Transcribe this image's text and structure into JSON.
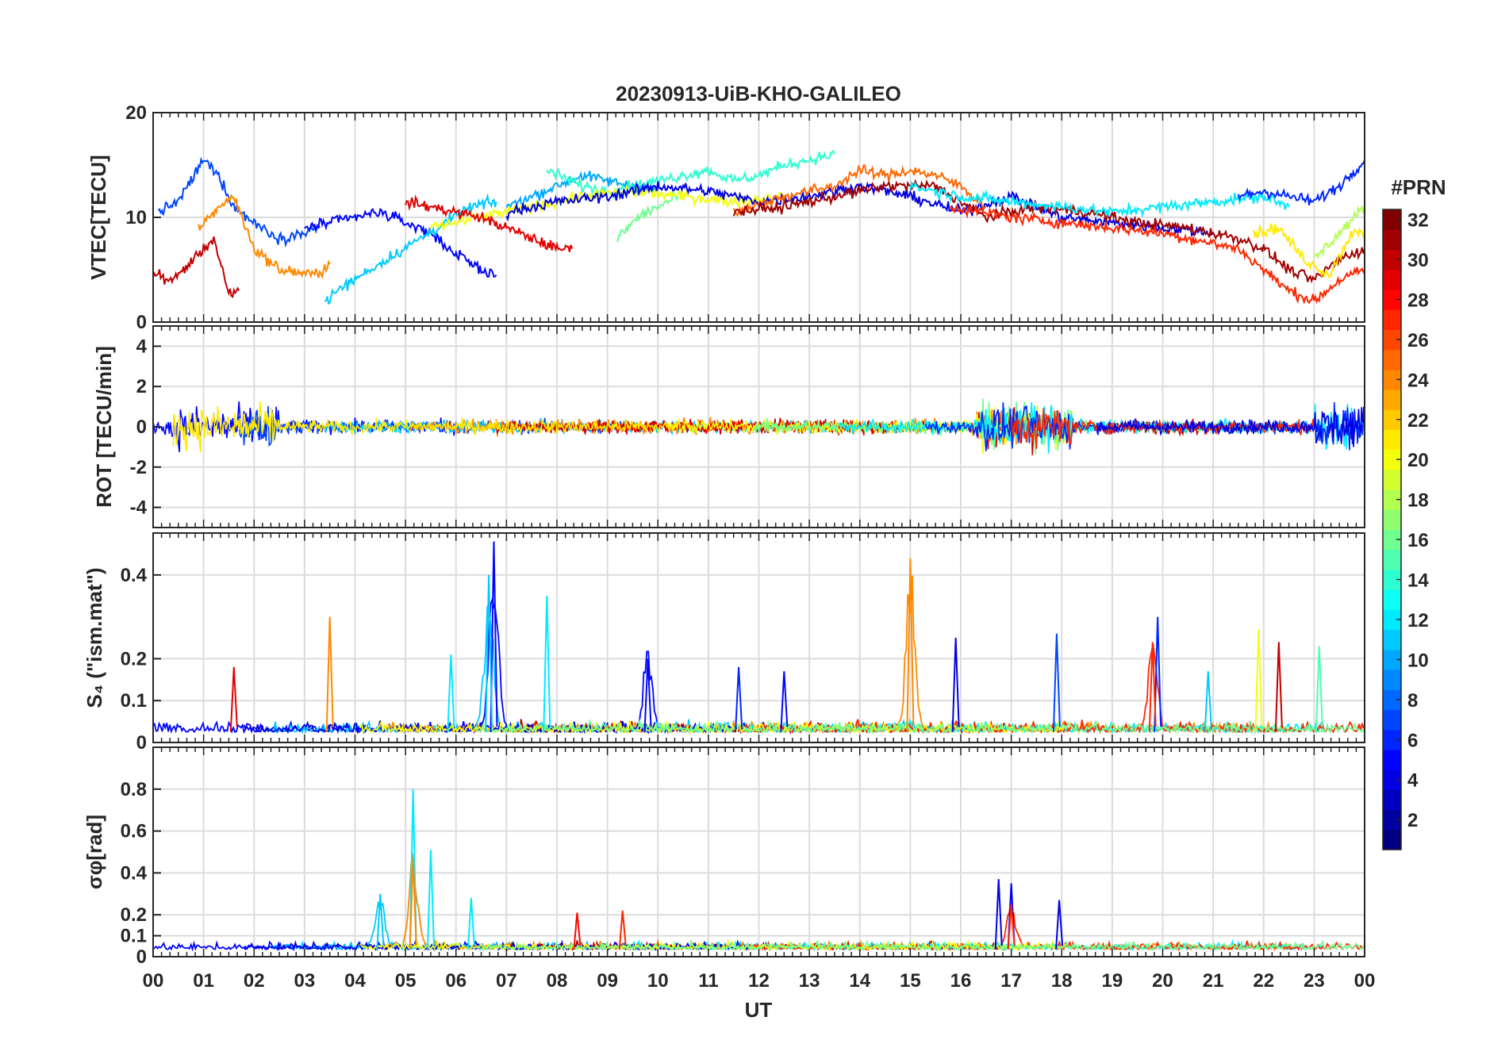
{
  "chart_data": {
    "type": "line",
    "title": "20230913-UiB-KHO-GALILEO",
    "xlabel": "UT",
    "x_ticks": [
      "00",
      "01",
      "02",
      "03",
      "04",
      "05",
      "06",
      "07",
      "08",
      "09",
      "10",
      "11",
      "12",
      "13",
      "14",
      "15",
      "16",
      "17",
      "18",
      "19",
      "20",
      "21",
      "22",
      "23",
      "00"
    ],
    "xlim": [
      0,
      24
    ],
    "colorbar": {
      "label": "#PRN",
      "range": [
        1,
        32
      ],
      "colormap": "jet",
      "ticks": [
        2,
        4,
        6,
        8,
        10,
        12,
        14,
        16,
        18,
        20,
        22,
        24,
        26,
        28,
        30,
        32
      ]
    },
    "panels": [
      {
        "id": "vtec",
        "ylabel": "VTEC[TECU]",
        "ylim": [
          0,
          20
        ],
        "yticks": [
          0,
          10,
          20
        ],
        "series": [
          {
            "prn": 7,
            "x": [
              0.1,
              0.5,
              1.0,
              1.3,
              1.6,
              2.0,
              2.5,
              3.0,
              3.3
            ],
            "y": [
              10.5,
              11.5,
              15.5,
              14,
              11,
              9.5,
              8,
              8.5,
              9
            ]
          },
          {
            "prn": 5,
            "x": [
              3.0,
              3.5,
              4.0,
              4.5,
              5.0,
              5.5,
              6.0,
              6.5,
              6.8
            ],
            "y": [
              9,
              9.5,
              10,
              10.5,
              9.5,
              8.5,
              6.5,
              5,
              4.5
            ]
          },
          {
            "prn": 30,
            "x": [
              0.0,
              0.4,
              0.8,
              1.2,
              1.5,
              1.7
            ],
            "y": [
              4.5,
              4,
              6,
              8,
              2.5,
              3
            ]
          },
          {
            "prn": 24,
            "x": [
              0.9,
              1.3,
              1.6,
              2.0,
              2.5,
              3.2,
              3.5
            ],
            "y": [
              9,
              11,
              12,
              7,
              5,
              4.5,
              5.5
            ]
          },
          {
            "prn": 11,
            "x": [
              3.4,
              3.8,
              4.3,
              4.8,
              5.3,
              5.8,
              6.3,
              6.8
            ],
            "y": [
              2,
              3.5,
              5,
              6.5,
              8,
              9.5,
              11,
              11.5
            ]
          },
          {
            "prn": 10,
            "x": [
              7.0,
              7.5,
              8.0,
              8.5,
              9.0,
              9.5,
              10.0
            ],
            "y": [
              11,
              12,
              13,
              14,
              13.5,
              13,
              12.5
            ]
          },
          {
            "prn": 14,
            "x": [
              7.8,
              8.5,
              9.0,
              9.5,
              10.0,
              10.5,
              11.0,
              11.5,
              12.0,
              12.5,
              13.0,
              13.5
            ],
            "y": [
              14.5,
              13,
              12.5,
              13,
              13.5,
              14,
              14.5,
              13.5,
              14,
              15,
              15.5,
              16
            ]
          },
          {
            "prn": 16,
            "x": [
              9.2,
              9.6,
              10.0,
              10.4
            ],
            "y": [
              8,
              10,
              11,
              12
            ]
          },
          {
            "prn": 20,
            "x": [
              5.5,
              6.5,
              7.5,
              8.5,
              9.5,
              10.5,
              11.5,
              12.5
            ],
            "y": [
              9,
              10,
              11,
              12,
              12.5,
              12,
              11.5,
              12
            ]
          },
          {
            "prn": 29,
            "x": [
              5.0,
              5.5,
              6.0,
              6.5,
              7.0,
              7.5,
              8.0,
              8.3
            ],
            "y": [
              11.5,
              11,
              10.5,
              10,
              9,
              8,
              7,
              7
            ]
          },
          {
            "prn": 4,
            "x": [
              7.0,
              8.0,
              9.0,
              10.0,
              11.0,
              12.0,
              13.0,
              14.0,
              15.0,
              16.0,
              17.0,
              18.0,
              19.0,
              20.0,
              21.0
            ],
            "y": [
              10.5,
              11.5,
              12,
              13,
              12.5,
              11.5,
              12,
              13,
              12,
              10.5,
              12,
              10,
              9.5,
              9,
              8.5
            ]
          },
          {
            "prn": 25,
            "x": [
              11.5,
              12.5,
              13.5,
              14.0,
              14.5,
              15.0,
              15.5,
              16.0,
              16.5
            ],
            "y": [
              10.5,
              12,
              13,
              14.5,
              14,
              14.5,
              14,
              13,
              11
            ]
          },
          {
            "prn": 31,
            "x": [
              11.5,
              12.5,
              13.5,
              14.5,
              15.5,
              16.5,
              17.5,
              18.5,
              19.5,
              20.5,
              21.5,
              22.0,
              22.5,
              23.0,
              23.5,
              24.0
            ],
            "y": [
              10.5,
              11,
              12,
              13,
              13,
              10,
              11,
              10.5,
              9.5,
              9,
              8,
              7,
              5,
              4,
              6,
              7
            ]
          },
          {
            "prn": 12,
            "x": [
              15.0,
              16.0,
              17.0,
              18.0,
              19.0,
              20.0,
              21.0,
              22.0,
              22.5
            ],
            "y": [
              13,
              12,
              11.5,
              11,
              10.5,
              11,
              11.5,
              12,
              11
            ]
          },
          {
            "prn": 27,
            "x": [
              15.8,
              17.0,
              18.0,
              19.0,
              20.0,
              21.0,
              21.5,
              22.0,
              22.5,
              23.0,
              23.5,
              24.0
            ],
            "y": [
              11,
              10,
              9.5,
              9,
              8.5,
              7.5,
              7,
              5,
              3,
              2,
              4,
              5
            ]
          },
          {
            "prn": 6,
            "x": [
              21.5,
              22.0,
              22.5,
              23.0,
              23.5,
              24.0
            ],
            "y": [
              12,
              12.5,
              12,
              11.5,
              13,
              15.5
            ]
          },
          {
            "prn": 21,
            "x": [
              21.8,
              22.3,
              22.8,
              23.3,
              23.8,
              24.0
            ],
            "y": [
              8.5,
              9,
              6,
              4.5,
              9,
              8
            ]
          },
          {
            "prn": 18,
            "x": [
              23.0,
              23.4,
              23.8,
              24.0
            ],
            "y": [
              6,
              8,
              10,
              11
            ]
          }
        ]
      },
      {
        "id": "rot",
        "ylabel": "ROT [TECU/min]",
        "ylim": [
          -5,
          5
        ],
        "yticks": [
          -4,
          -2,
          0,
          2,
          4
        ],
        "series_note_visible": false
      },
      {
        "id": "s4",
        "ylabel": "S₄ (\"ism.mat\")",
        "ylim": [
          0,
          0.5
        ],
        "yticks": [
          0,
          0.1,
          0.2,
          0.4
        ],
        "peaks": [
          {
            "prn": 29,
            "x": 1.6,
            "y": 0.18
          },
          {
            "prn": 24,
            "x": 3.5,
            "y": 0.3
          },
          {
            "prn": 12,
            "x": 5.9,
            "y": 0.21
          },
          {
            "prn": 5,
            "x": 6.75,
            "y": 0.48
          },
          {
            "prn": 11,
            "x": 6.65,
            "y": 0.4
          },
          {
            "prn": 12,
            "x": 7.8,
            "y": 0.35
          },
          {
            "prn": 5,
            "x": 9.8,
            "y": 0.2
          },
          {
            "prn": 6,
            "x": 11.6,
            "y": 0.18
          },
          {
            "prn": 5,
            "x": 12.5,
            "y": 0.17
          },
          {
            "prn": 24,
            "x": 15.0,
            "y": 0.44
          },
          {
            "prn": 4,
            "x": 15.9,
            "y": 0.25
          },
          {
            "prn": 7,
            "x": 17.9,
            "y": 0.26
          },
          {
            "prn": 6,
            "x": 19.9,
            "y": 0.3
          },
          {
            "prn": 27,
            "x": 19.8,
            "y": 0.24
          },
          {
            "prn": 11,
            "x": 20.9,
            "y": 0.17
          },
          {
            "prn": 20,
            "x": 21.9,
            "y": 0.27
          },
          {
            "prn": 30,
            "x": 22.3,
            "y": 0.24
          },
          {
            "prn": 15,
            "x": 23.1,
            "y": 0.23
          }
        ]
      },
      {
        "id": "sigma",
        "ylabel": "σφ[rad]",
        "ylim": [
          0,
          1
        ],
        "yticks": [
          0,
          0.1,
          0.2,
          0.4,
          0.6,
          0.8
        ],
        "peaks": [
          {
            "prn": 12,
            "x": 5.15,
            "y": 0.8
          },
          {
            "prn": 24,
            "x": 5.15,
            "y": 0.47
          },
          {
            "prn": 12,
            "x": 5.5,
            "y": 0.51
          },
          {
            "prn": 11,
            "x": 4.5,
            "y": 0.3
          },
          {
            "prn": 12,
            "x": 6.3,
            "y": 0.28
          },
          {
            "prn": 28,
            "x": 8.4,
            "y": 0.21
          },
          {
            "prn": 27,
            "x": 9.3,
            "y": 0.22
          },
          {
            "prn": 4,
            "x": 16.75,
            "y": 0.37
          },
          {
            "prn": 5,
            "x": 17.0,
            "y": 0.35
          },
          {
            "prn": 27,
            "x": 17.0,
            "y": 0.25
          },
          {
            "prn": 4,
            "x": 17.95,
            "y": 0.27
          }
        ]
      }
    ]
  }
}
